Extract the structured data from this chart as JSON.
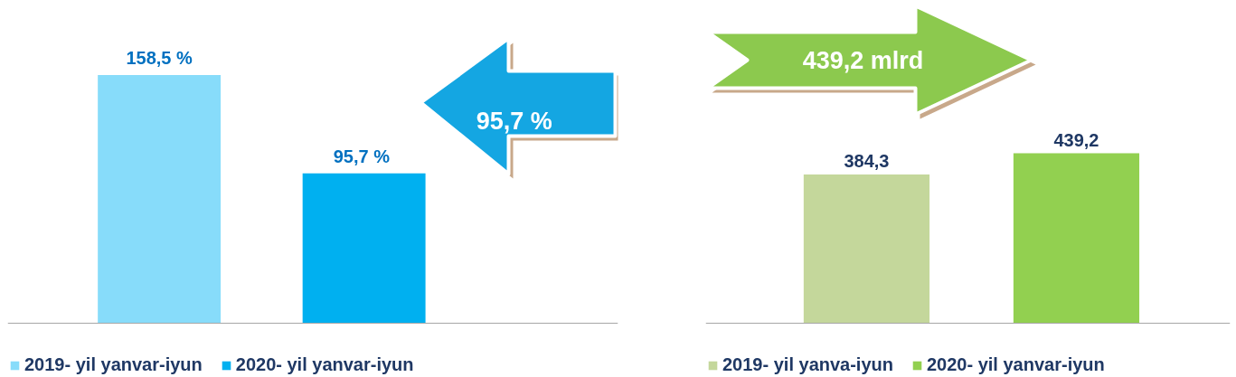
{
  "chart_data": [
    {
      "type": "bar",
      "categories": [
        null,
        null
      ],
      "stacked": true,
      "series": [
        {
          "name": "2019- yil yanvar-iyun",
          "color": "#87dcfa",
          "values": [
            158.5,
            null
          ],
          "value_labels": [
            "158,5 %",
            null
          ]
        },
        {
          "name": "2020- yil yanvar-iyun",
          "color": "#00b0f0",
          "values": [
            null,
            95.7
          ],
          "value_labels": [
            null,
            "95,7  %"
          ]
        }
      ],
      "annotations": [
        "95,7 %"
      ],
      "legend": "bottom",
      "grid": false,
      "tick_labels": false
    },
    {
      "type": "bar",
      "categories": [
        null,
        null
      ],
      "stacked": true,
      "series": [
        {
          "name": "2019- yil yanva-iyun",
          "color": "#c4d79b",
          "values": [
            384.3,
            null
          ],
          "value_labels": [
            "384,3",
            null
          ]
        },
        {
          "name": "2020- yil yanvar-iyun",
          "color": "#92d050",
          "values": [
            null,
            439.2
          ],
          "value_labels": [
            null,
            "439,2"
          ]
        }
      ],
      "annotations": [
        "439,2 mlrd"
      ],
      "legend": "bottom",
      "grid": false,
      "tick_labels": false
    }
  ]
}
